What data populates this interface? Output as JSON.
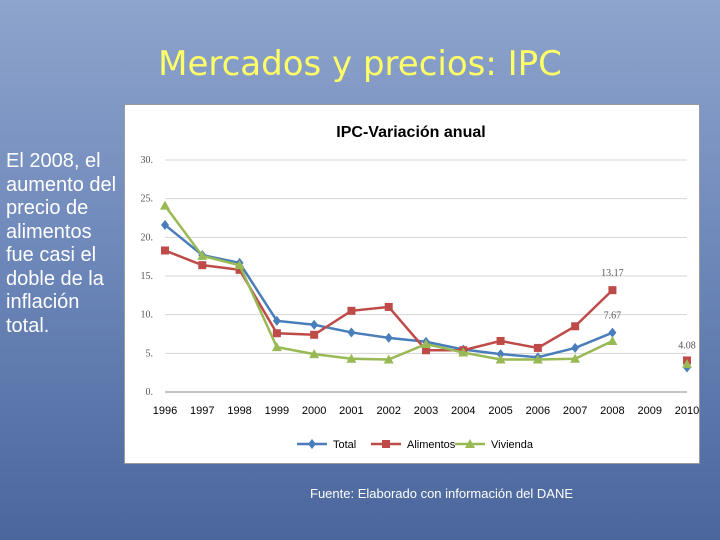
{
  "slide": {
    "title": "Mercados y precios: IPC",
    "side_text": "El 2008, el aumento del precio de alimentos fue casi el doble de la inflación total.",
    "source": "Fuente: Elaborado con información del DANE"
  },
  "chart_data": {
    "type": "line",
    "title": "IPC-Variación anual",
    "xlabel": "",
    "ylabel": "",
    "categories": [
      "1996",
      "1997",
      "1998",
      "1999",
      "2000",
      "2001",
      "2002",
      "2003",
      "2004",
      "2005",
      "2006",
      "2007",
      "2008",
      "2009",
      "2010"
    ],
    "ylim": [
      0,
      30
    ],
    "yticks": [
      0,
      5,
      10,
      15,
      20,
      25,
      30
    ],
    "ytick_labels": [
      "0.",
      "5.",
      "10.",
      "15.",
      "20.",
      "25.",
      "30."
    ],
    "grid": true,
    "legend": "bottom",
    "series": [
      {
        "name": "Total",
        "color": "#4a7ebb",
        "marker": "diamond",
        "values": [
          21.6,
          17.7,
          16.7,
          9.2,
          8.7,
          7.7,
          7.0,
          6.5,
          5.5,
          4.9,
          4.5,
          5.7,
          7.67,
          null,
          3.17
        ]
      },
      {
        "name": "Alimentos",
        "color": "#be4b48",
        "marker": "square",
        "values": [
          18.3,
          16.4,
          15.8,
          7.6,
          7.4,
          10.5,
          11.0,
          5.4,
          5.4,
          6.6,
          5.7,
          8.5,
          13.17,
          null,
          4.08
        ]
      },
      {
        "name": "Vivienda",
        "color": "#98b954",
        "marker": "triangle",
        "values": [
          24.1,
          17.6,
          16.4,
          5.8,
          4.9,
          4.3,
          4.2,
          6.2,
          5.1,
          4.2,
          4.2,
          4.3,
          6.6,
          null,
          3.6
        ]
      }
    ],
    "annotations": [
      {
        "x": "2008",
        "text": "13.17"
      },
      {
        "x": "2008",
        "text": "7.67"
      },
      {
        "x": "2010",
        "text": "4.08"
      }
    ]
  }
}
